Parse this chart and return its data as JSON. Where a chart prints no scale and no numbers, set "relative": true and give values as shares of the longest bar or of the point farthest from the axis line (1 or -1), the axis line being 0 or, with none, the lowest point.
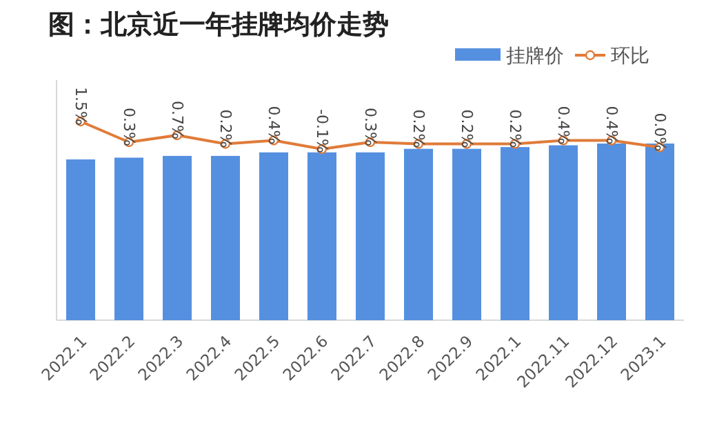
{
  "chart_data": [
    {
      "type": "bar",
      "title": "图：北京近一年挂牌均价走势",
      "categories": [
        "2022.1",
        "2022.2",
        "2022.3",
        "2022.4",
        "2022.5",
        "2022.6",
        "2022.7",
        "2022.8",
        "2022.9",
        "2022.1",
        "2022.11",
        "2022.12",
        "2023.1"
      ],
      "relative": true,
      "legend": "top right",
      "series": [
        {
          "name": "挂牌价",
          "color": "#5590e0",
          "values": [
            0.91,
            0.92,
            0.93,
            0.93,
            0.95,
            0.95,
            0.95,
            0.97,
            0.97,
            0.98,
            0.99,
            1.0,
            1.0
          ]
        }
      ]
    },
    {
      "type": "line",
      "tick_labels": false,
      "legend": "top right",
      "marker": "circle",
      "series": [
        {
          "name": "环比",
          "color": "#e07b39",
          "values": [
            1.5,
            0.3,
            0.7,
            0.2,
            0.4,
            -0.1,
            0.3,
            0.2,
            0.2,
            0.2,
            0.4,
            0.4,
            0.0
          ],
          "value_labels": [
            "1.5%",
            "0.3%",
            "0.7%",
            "0.2%",
            "0.4%",
            "-0.1%",
            "0.3%",
            "0.2%",
            "0.2%",
            "0.2%",
            "0.4%",
            "0.4%",
            "0.0%"
          ]
        }
      ]
    }
  ]
}
